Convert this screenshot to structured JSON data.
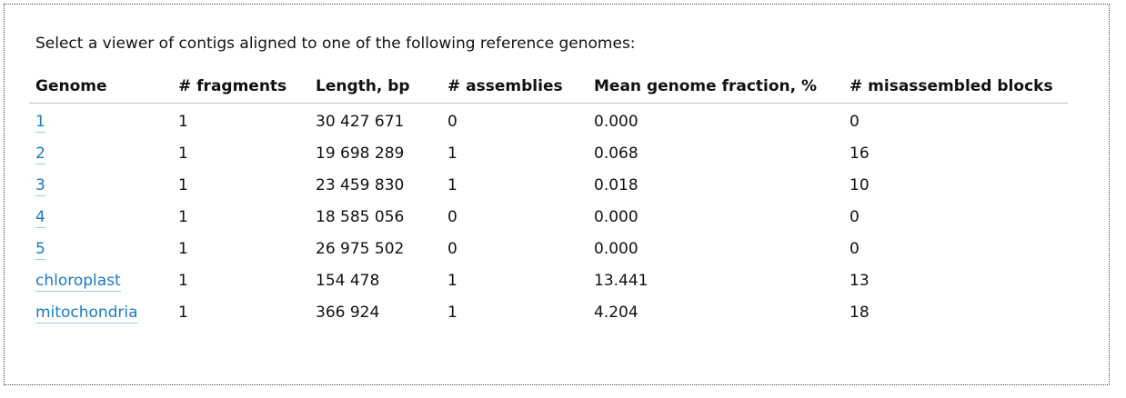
{
  "intro_text": "Select a viewer of contigs aligned to one of the following reference genomes:",
  "link_color": "#1a7bbf",
  "columns": [
    "Genome",
    "# fragments",
    "Length, bp",
    "# assemblies",
    "Mean genome fraction, %",
    "# misassembled blocks"
  ],
  "rows": [
    {
      "genome": "1",
      "fragments": "1",
      "length": "30 427 671",
      "assemblies": "0",
      "fraction": "0.000",
      "misassembled": "0"
    },
    {
      "genome": "2",
      "fragments": "1",
      "length": "19 698 289",
      "assemblies": "1",
      "fraction": "0.068",
      "misassembled": "16"
    },
    {
      "genome": "3",
      "fragments": "1",
      "length": "23 459 830",
      "assemblies": "1",
      "fraction": "0.018",
      "misassembled": "10"
    },
    {
      "genome": "4",
      "fragments": "1",
      "length": "18 585 056",
      "assemblies": "0",
      "fraction": "0.000",
      "misassembled": "0"
    },
    {
      "genome": "5",
      "fragments": "1",
      "length": "26 975 502",
      "assemblies": "0",
      "fraction": "0.000",
      "misassembled": "0"
    },
    {
      "genome": "chloroplast",
      "fragments": "1",
      "length": "154 478",
      "assemblies": "1",
      "fraction": "13.441",
      "misassembled": "13"
    },
    {
      "genome": "mitochondria",
      "fragments": "1",
      "length": "366 924",
      "assemblies": "1",
      "fraction": "4.204",
      "misassembled": "18"
    }
  ]
}
